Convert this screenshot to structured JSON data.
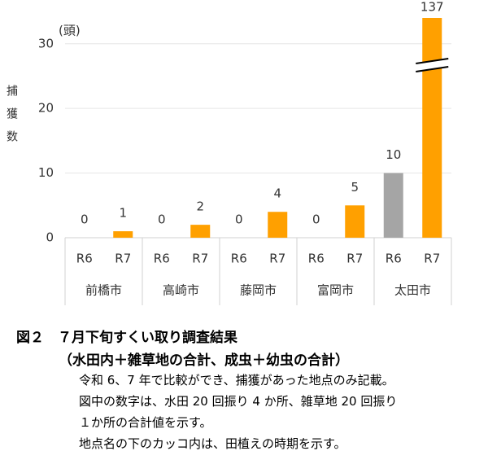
{
  "chart_data": {
    "type": "grouped_bar",
    "y_label": "捕獲数",
    "unit": "(頭)",
    "categories": [
      "前橋市",
      "高崎市",
      "藤岡市",
      "富岡市",
      "太田市"
    ],
    "series": [
      {
        "name": "R6",
        "color": "#a5a5a5",
        "values": [
          0,
          0,
          0,
          0,
          10
        ]
      },
      {
        "name": "R7",
        "color": "#ffa000",
        "values": [
          1,
          2,
          4,
          5,
          137
        ]
      }
    ],
    "ylim": [
      0,
      34
    ],
    "yticks": [
      0,
      10,
      20,
      30
    ],
    "grid": true,
    "axis_break": true
  },
  "caption": {
    "title": "図２　７月下旬すくい取り調査結果",
    "subtitle": "（水田内＋雑草地の合計、成虫＋幼虫の合計）",
    "notes": [
      "令和 6、7 年で比較ができ、捕獲があった地点のみ記載。",
      "図中の数字は、水田 20 回振り 4 か所、雑草地 20 回振り",
      "１か所の合計値を示す。",
      "地点名の下のカッコ内は、田植えの時期を示す。"
    ]
  }
}
